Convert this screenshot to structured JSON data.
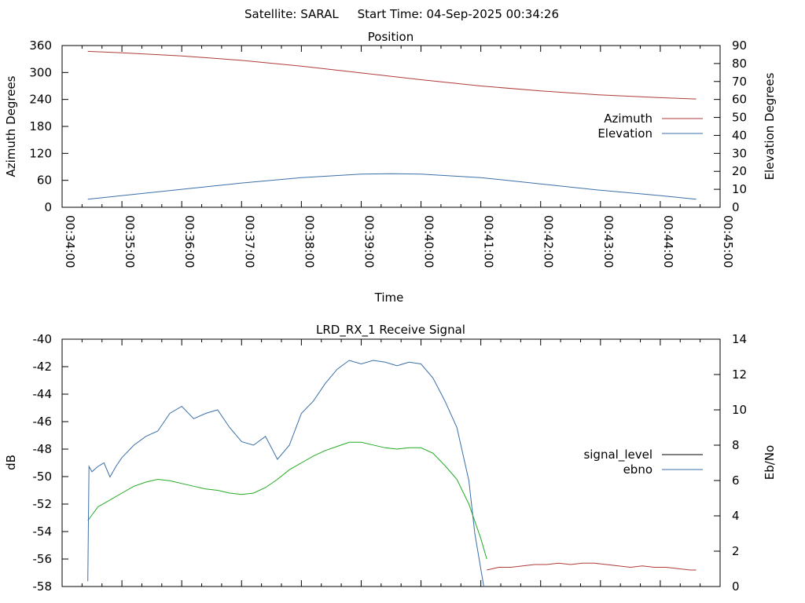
{
  "page_title": "Satellite: SARAL     Start Time: 04-Sep-2025 00:34:26",
  "chart_data": [
    {
      "type": "line",
      "title": "Position",
      "xlabel": "Time",
      "ylabel": "Azimuth Degrees",
      "y2label": "Elevation Degrees",
      "x_ticks": [
        "00:34:00",
        "00:35:00",
        "00:36:00",
        "00:37:00",
        "00:38:00",
        "00:39:00",
        "00:40:00",
        "00:41:00",
        "00:42:00",
        "00:43:00",
        "00:44:00",
        "00:45:00"
      ],
      "xlim": [
        0,
        11
      ],
      "ylim": [
        0,
        360
      ],
      "y_ticks": [
        0,
        60,
        120,
        180,
        240,
        300,
        360
      ],
      "y2lim": [
        0,
        90
      ],
      "y2_ticks": [
        0,
        10,
        20,
        30,
        40,
        50,
        60,
        70,
        80,
        90
      ],
      "legend_position": "right",
      "series": [
        {
          "name": "Azimuth",
          "axis": "y",
          "color": "#b03a3a",
          "x": [
            0.43,
            1,
            2,
            3,
            4,
            5,
            6,
            7,
            8,
            9,
            10,
            10.6
          ],
          "values": [
            347,
            344,
            337,
            327,
            314,
            299,
            284,
            270,
            259,
            250,
            244,
            241
          ]
        },
        {
          "name": "Elevation",
          "axis": "y2",
          "color": "#3a6fa8",
          "x": [
            0.43,
            1,
            2,
            3,
            4,
            5,
            5.5,
            6,
            7,
            8,
            9,
            10,
            10.6
          ],
          "values": [
            4.5,
            6.5,
            10,
            13.5,
            16.5,
            18.5,
            18.7,
            18.5,
            16.5,
            13,
            9.5,
            6.5,
            4.5
          ]
        }
      ]
    },
    {
      "type": "line",
      "title": "LRD_RX_1 Receive Signal",
      "ylabel": "dB",
      "y2label": "Eb/No",
      "xlim": [
        0,
        11
      ],
      "ylim": [
        -58,
        -40
      ],
      "y_ticks": [
        -58,
        -56,
        -54,
        -52,
        -50,
        -48,
        -46,
        -44,
        -42,
        -40
      ],
      "y2lim": [
        0,
        14
      ],
      "y2_ticks": [
        0,
        2,
        4,
        6,
        8,
        10,
        12,
        14
      ],
      "legend_position": "right",
      "legend": [
        {
          "name": "signal_level",
          "color": "#000000"
        },
        {
          "name": "ebno",
          "color": "#3a6fa8"
        }
      ],
      "series": [
        {
          "name": "signal_level",
          "axis": "y",
          "color": "#22aa22",
          "x": [
            0.43,
            0.6,
            0.8,
            1.0,
            1.2,
            1.4,
            1.6,
            1.8,
            2.0,
            2.2,
            2.4,
            2.6,
            2.8,
            3.0,
            3.2,
            3.4,
            3.6,
            3.8,
            4.0,
            4.2,
            4.4,
            4.6,
            4.8,
            5.0,
            5.2,
            5.4,
            5.6,
            5.8,
            6.0,
            6.2,
            6.4,
            6.6,
            6.8,
            7.0,
            7.1
          ],
          "values": [
            -53.2,
            -52.2,
            -51.7,
            -51.2,
            -50.7,
            -50.4,
            -50.2,
            -50.3,
            -50.5,
            -50.7,
            -50.9,
            -51.0,
            -51.2,
            -51.3,
            -51.2,
            -50.8,
            -50.2,
            -49.5,
            -49.0,
            -48.5,
            -48.1,
            -47.8,
            -47.5,
            -47.5,
            -47.7,
            -47.9,
            -48.0,
            -47.9,
            -47.9,
            -48.3,
            -49.2,
            -50.2,
            -52.0,
            -54.5,
            -56.0
          ]
        },
        {
          "name": "signal_level",
          "axis": "y",
          "color": "#b03a3a",
          "x": [
            7.1,
            7.3,
            7.5,
            7.7,
            7.9,
            8.1,
            8.3,
            8.5,
            8.7,
            8.9,
            9.1,
            9.3,
            9.5,
            9.7,
            9.9,
            10.1,
            10.3,
            10.5,
            10.6
          ],
          "values": [
            -56.8,
            -56.6,
            -56.6,
            -56.5,
            -56.4,
            -56.4,
            -56.3,
            -56.4,
            -56.3,
            -56.3,
            -56.4,
            -56.5,
            -56.6,
            -56.5,
            -56.6,
            -56.6,
            -56.7,
            -56.8,
            -56.8
          ]
        },
        {
          "name": "ebno",
          "axis": "y2",
          "color": "#3a6fa8",
          "x": [
            0.43,
            0.45,
            0.5,
            0.6,
            0.7,
            0.8,
            0.9,
            1.0,
            1.2,
            1.4,
            1.6,
            1.8,
            2.0,
            2.2,
            2.4,
            2.6,
            2.8,
            3.0,
            3.2,
            3.4,
            3.6,
            3.8,
            4.0,
            4.2,
            4.4,
            4.6,
            4.8,
            5.0,
            5.2,
            5.4,
            5.6,
            5.8,
            6.0,
            6.2,
            6.4,
            6.6,
            6.8,
            6.9,
            7.0,
            7.05
          ],
          "values": [
            0.3,
            6.8,
            6.5,
            6.8,
            7.0,
            6.2,
            6.8,
            7.3,
            8.0,
            8.5,
            8.8,
            9.8,
            10.2,
            9.5,
            9.8,
            10.0,
            9.0,
            8.2,
            8.0,
            8.5,
            7.2,
            8.0,
            9.8,
            10.5,
            11.5,
            12.3,
            12.8,
            12.6,
            12.8,
            12.7,
            12.5,
            12.7,
            12.6,
            11.8,
            10.5,
            9.0,
            6.0,
            3.0,
            1.0,
            0.0
          ]
        }
      ]
    }
  ]
}
